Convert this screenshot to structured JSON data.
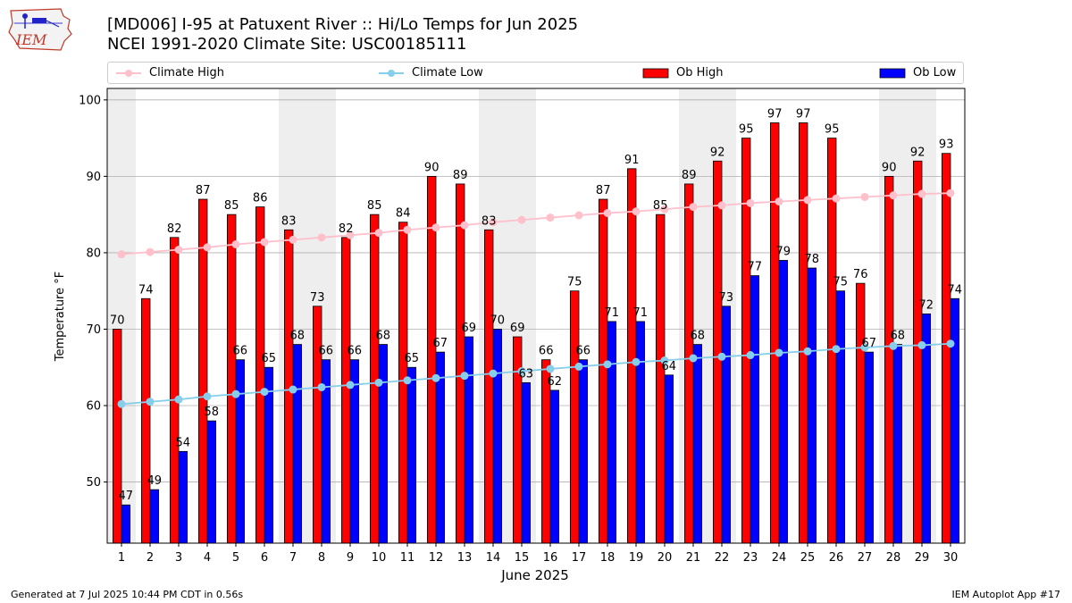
{
  "header": {
    "title_line1": "[MD006] I-95 at Patuxent River  :: Hi/Lo Temps for Jun 2025",
    "title_line2": "NCEI 1991-2020 Climate Site: USC00185111",
    "logo_text": "IEM"
  },
  "footer": {
    "generated": "Generated at 7 Jul 2025 10:44 PM CDT in 0.56s",
    "app": "IEM Autoplot App #17"
  },
  "colors": {
    "ob_high": "#ff0000",
    "ob_low": "#0000ff",
    "climate_high": "#ffc0cb",
    "climate_low": "#87ceeb",
    "weekend_shade": "#eeeeee"
  },
  "chart_data": {
    "type": "bar",
    "xlabel": "June 2025",
    "ylabel": "Temperature °F",
    "ylim": [
      42,
      101.5
    ],
    "yticks": [
      50,
      60,
      70,
      80,
      90,
      100
    ],
    "grid": true,
    "legend_position": "top",
    "categories": [
      "1",
      "2",
      "3",
      "4",
      "5",
      "6",
      "7",
      "8",
      "9",
      "10",
      "11",
      "12",
      "13",
      "14",
      "15",
      "16",
      "17",
      "18",
      "19",
      "20",
      "21",
      "22",
      "23",
      "24",
      "25",
      "26",
      "27",
      "28",
      "29",
      "30"
    ],
    "shaded_days": [
      1,
      7,
      8,
      14,
      15,
      21,
      22,
      28,
      29
    ],
    "series": [
      {
        "name": "Ob High",
        "kind": "bar",
        "values": [
          70,
          74,
          82,
          87,
          85,
          86,
          83,
          73,
          82,
          85,
          84,
          90,
          89,
          83,
          69,
          66,
          75,
          87,
          91,
          85,
          89,
          92,
          95,
          97,
          97,
          95,
          76,
          90,
          92,
          93
        ]
      },
      {
        "name": "Ob Low",
        "kind": "bar",
        "values": [
          47,
          49,
          54,
          58,
          66,
          65,
          68,
          66,
          66,
          68,
          65,
          67,
          69,
          70,
          63,
          62,
          66,
          71,
          71,
          64,
          68,
          73,
          77,
          79,
          78,
          75,
          67,
          68,
          72,
          74
        ]
      },
      {
        "name": "Climate High",
        "kind": "line",
        "values": [
          79.8,
          80.1,
          80.4,
          80.7,
          81.1,
          81.4,
          81.7,
          82.0,
          82.3,
          82.6,
          83.0,
          83.3,
          83.6,
          84.0,
          84.3,
          84.6,
          84.9,
          85.2,
          85.4,
          85.7,
          86.0,
          86.2,
          86.5,
          86.7,
          86.9,
          87.1,
          87.3,
          87.5,
          87.7,
          87.8
        ]
      },
      {
        "name": "Climate Low",
        "kind": "line",
        "values": [
          60.2,
          60.5,
          60.8,
          61.2,
          61.5,
          61.8,
          62.1,
          62.4,
          62.7,
          63.0,
          63.3,
          63.6,
          63.9,
          64.2,
          64.5,
          64.8,
          65.1,
          65.4,
          65.7,
          65.9,
          66.2,
          66.4,
          66.6,
          66.9,
          67.1,
          67.4,
          67.6,
          67.8,
          67.9,
          68.1
        ]
      }
    ]
  }
}
